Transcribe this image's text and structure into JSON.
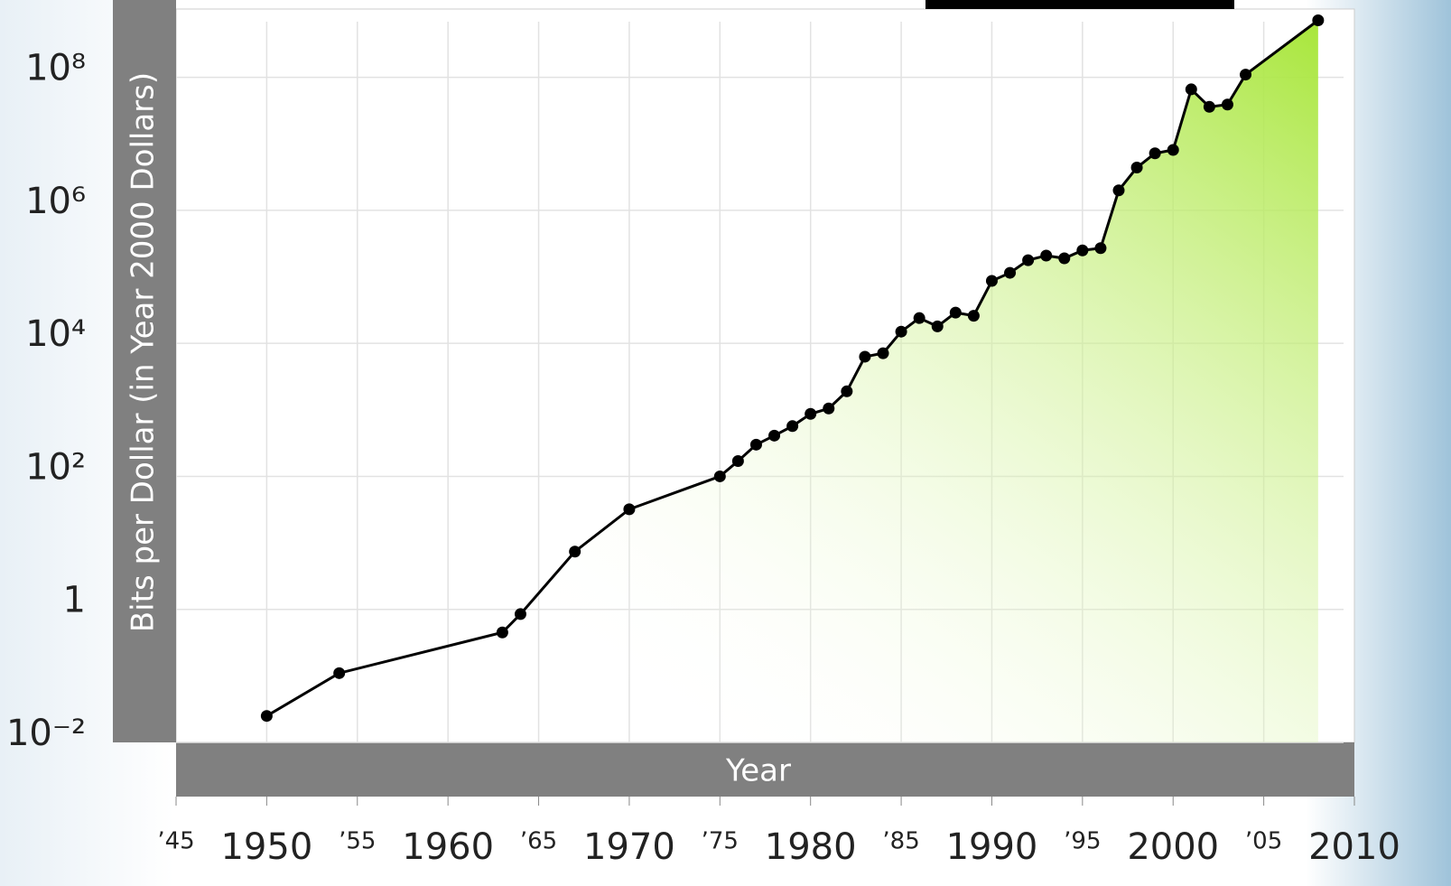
{
  "chart_data": {
    "type": "line",
    "x_label": "Year",
    "y_label": "Bits per Dollar (in Year 2000 Dollars)",
    "log_y": true,
    "grid": true,
    "color": "#000000",
    "fill_color": "#a8e63a",
    "x": [
      1950,
      1954,
      1963,
      1964,
      1967,
      1970,
      1975,
      1976,
      1977,
      1978,
      1979,
      1980,
      1981,
      1982,
      1983,
      1984,
      1985,
      1986,
      1987,
      1988,
      1989,
      1990,
      1991,
      1992,
      1993,
      1994,
      1995,
      1996,
      1997,
      1998,
      1999,
      2000,
      2001,
      2002,
      2003,
      2004,
      2008
    ],
    "values": [
      0.025,
      0.11,
      0.45,
      0.85,
      7.4,
      32,
      100,
      170,
      300,
      410,
      570,
      870,
      1050,
      1900,
      6300,
      7100,
      15000,
      24000,
      18000,
      29000,
      26000,
      87000,
      115000,
      178000,
      209000,
      190000,
      250000,
      270000,
      2000000,
      4400000,
      7200000,
      8100000,
      66000000,
      36000000,
      39000000,
      110000000,
      720000000
    ],
    "xlim": [
      1945,
      2010
    ],
    "xticks": [
      {
        "value": 1945,
        "label": "’45"
      },
      1950,
      {
        "value": 1955,
        "label": "’55"
      },
      1960,
      {
        "value": 1965,
        "label": "’65"
      },
      1970,
      {
        "value": 1975,
        "label": "’75"
      },
      1980,
      {
        "value": 1985,
        "label": "’85"
      },
      1990,
      {
        "value": 1995,
        "label": "’95"
      },
      2000,
      {
        "value": 2005,
        "label": "’05"
      },
      2010
    ],
    "ylim": [
      0.01,
      1000000000
    ],
    "yticks": [
      {
        "value": 0.01,
        "label": "10⁻²"
      },
      1,
      {
        "value": 100,
        "label": "10²"
      },
      {
        "value": 10000,
        "label": "10⁴"
      },
      {
        "value": 1000000,
        "label": "10⁶"
      },
      {
        "value": 100000000,
        "label": "10⁸"
      }
    ]
  }
}
